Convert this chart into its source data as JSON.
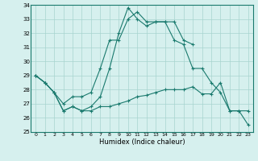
{
  "xlabel": "Humidex (Indice chaleur)",
  "x": [
    0,
    1,
    2,
    3,
    4,
    5,
    6,
    7,
    8,
    9,
    10,
    11,
    12,
    13,
    14,
    15,
    16,
    17,
    18,
    19,
    20,
    21,
    22,
    23
  ],
  "line1": [
    29,
    28.5,
    27.8,
    27.0,
    27.5,
    27.5,
    27.8,
    29.5,
    31.5,
    31.5,
    33.0,
    33.5,
    32.8,
    32.8,
    32.8,
    31.5,
    31.2,
    29.5,
    29.5,
    28.5,
    27.8,
    26.5,
    26.5,
    26.5
  ],
  "line2_x": [
    0,
    1,
    2,
    3,
    4,
    5,
    6,
    7,
    8,
    9,
    10,
    11,
    12,
    13,
    14,
    15,
    16,
    17
  ],
  "line2": [
    29,
    28.5,
    27.8,
    26.5,
    26.8,
    26.5,
    26.8,
    27.5,
    29.5,
    32.0,
    33.8,
    33.0,
    32.5,
    32.8,
    32.8,
    32.8,
    31.5,
    31.2
  ],
  "line3": [
    29,
    28.5,
    27.8,
    26.5,
    26.8,
    26.5,
    26.5,
    26.8,
    26.8,
    27.0,
    27.2,
    27.5,
    27.6,
    27.8,
    28.0,
    28.0,
    28.0,
    28.2,
    27.7,
    27.7,
    28.5,
    26.5,
    26.5,
    25.5
  ],
  "ylim": [
    25,
    34
  ],
  "xlim": [
    -0.5,
    23.5
  ],
  "yticks": [
    25,
    26,
    27,
    28,
    29,
    30,
    31,
    32,
    33,
    34
  ],
  "xticks": [
    0,
    1,
    2,
    3,
    4,
    5,
    6,
    7,
    8,
    9,
    10,
    11,
    12,
    13,
    14,
    15,
    16,
    17,
    18,
    19,
    20,
    21,
    22,
    23
  ],
  "line_color": "#1a7a6e",
  "bg_color": "#d6f0ee",
  "grid_color": "#a8d4cf"
}
